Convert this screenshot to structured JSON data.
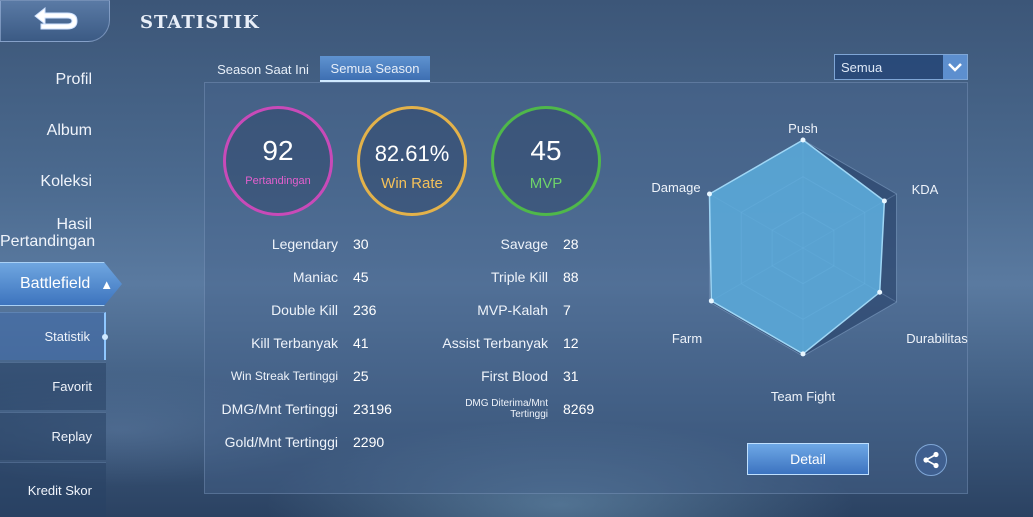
{
  "header": {
    "title": "STATISTIK"
  },
  "sidebar": {
    "items": [
      {
        "label": "Profil"
      },
      {
        "label": "Album"
      },
      {
        "label": "Koleksi"
      },
      {
        "label": "Hasil Pertandingan"
      },
      {
        "label": "Battlefield"
      }
    ],
    "sub_items": [
      {
        "label": "Statistik"
      },
      {
        "label": "Favorit"
      },
      {
        "label": "Replay"
      },
      {
        "label": "Kredit Skor"
      }
    ]
  },
  "tabs": [
    {
      "label": "Season Saat Ini"
    },
    {
      "label": "Semua Season"
    }
  ],
  "filter": {
    "selected": "Semua"
  },
  "summary": {
    "matches": {
      "value": "92",
      "label": "Pertandingan",
      "color": "#c84ab8"
    },
    "win_rate": {
      "value": "82.61%",
      "label": "Win Rate",
      "color": "#e3b24a"
    },
    "mvp": {
      "value": "45",
      "label": "MVP",
      "color": "#4fb84a"
    }
  },
  "stats_left": [
    {
      "label": "Legendary",
      "value": "30"
    },
    {
      "label": "Maniac",
      "value": "45"
    },
    {
      "label": "Double Kill",
      "value": "236"
    },
    {
      "label": "Kill Terbanyak",
      "value": "41"
    },
    {
      "label": "Win Streak Tertinggi",
      "value": "25"
    },
    {
      "label": "DMG/Mnt Tertinggi",
      "value": "23196"
    },
    {
      "label": "Gold/Mnt Tertinggi",
      "value": "2290"
    }
  ],
  "stats_right": [
    {
      "label": "Savage",
      "value": "28"
    },
    {
      "label": "Triple Kill",
      "value": "88"
    },
    {
      "label": "MVP-Kalah",
      "value": "7"
    },
    {
      "label": "Assist Terbanyak",
      "value": "12"
    },
    {
      "label": "First Blood",
      "value": "31"
    },
    {
      "label": "DMG Diterima/Mnt Tertinggi",
      "value": "8269"
    }
  ],
  "radar": {
    "axes": [
      "Push",
      "KDA",
      "Durabilitas",
      "Team Fight",
      "Farm",
      "Damage"
    ],
    "values": [
      1.0,
      0.87,
      0.82,
      0.98,
      0.98,
      1.0
    ],
    "fill_color": "#5fb0e0"
  },
  "actions": {
    "detail_label": "Detail"
  },
  "icons": {
    "back": "back-arrow-icon",
    "share": "share-icon",
    "caret": "chevron-down-icon"
  }
}
